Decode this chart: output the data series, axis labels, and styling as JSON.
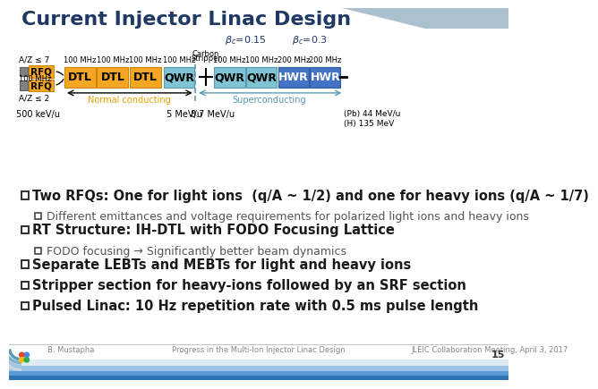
{
  "title": "Current Injector Linac Design",
  "title_color": "#1F3864",
  "title_fontsize": 16,
  "bg_color": "#FFFFFF",
  "top_stripe_color": "#9EB6C8",
  "footer_left": "B. Mustapha",
  "footer_center": "Progress in the Multi-Ion Injector Linac Design",
  "footer_right": "JLEIC Collaboration Meeting, April 3, 2017",
  "footer_page": "15",
  "bullets": [
    {
      "text": "Two RFQs: One for light ions  (q/A ~ 1/2) and one for heavy ions (q/A ~ 1/7)",
      "level": 1,
      "bold": true,
      "fontsize": 10.5
    },
    {
      "text": "Different emittances and voltage requirements for polarized light ions and heavy ions",
      "level": 2,
      "bold": false,
      "fontsize": 9
    },
    {
      "text": "RT Structure: IH-DTL with FODO Focusing Lattice",
      "level": 1,
      "bold": true,
      "fontsize": 10.5
    },
    {
      "text": "FODO focusing → Significantly better beam dynamics",
      "level": 2,
      "bold": false,
      "fontsize": 9
    },
    {
      "text": "Separate LEBTs and MEBTs for light and heavy ions",
      "level": 1,
      "bold": true,
      "fontsize": 10.5
    },
    {
      "text": "Stripper section for heavy-ions followed by an SRF section",
      "level": 1,
      "bold": true,
      "fontsize": 10.5
    },
    {
      "text": "Pulsed Linac: 10 Hz repetition rate with 0.5 ms pulse length",
      "level": 1,
      "bold": true,
      "fontsize": 10.5
    }
  ],
  "rfq_color": "#F5A623",
  "rfq_border": "#CC8800",
  "dtl_color": "#F5A623",
  "dtl_border": "#CC8800",
  "qwr_color": "#7FC4D4",
  "qwr_border": "#5A9BB0",
  "hwr_color": "#4472C4",
  "hwr_border": "#2E5FA3",
  "gray_box_color": "#808080",
  "gray_box_border": "#606060",
  "beta_color": "#1F3864",
  "nc_label_color": "#E8A000",
  "sc_label_color": "#5A9BB0",
  "separator_color": "#5A9BB0"
}
